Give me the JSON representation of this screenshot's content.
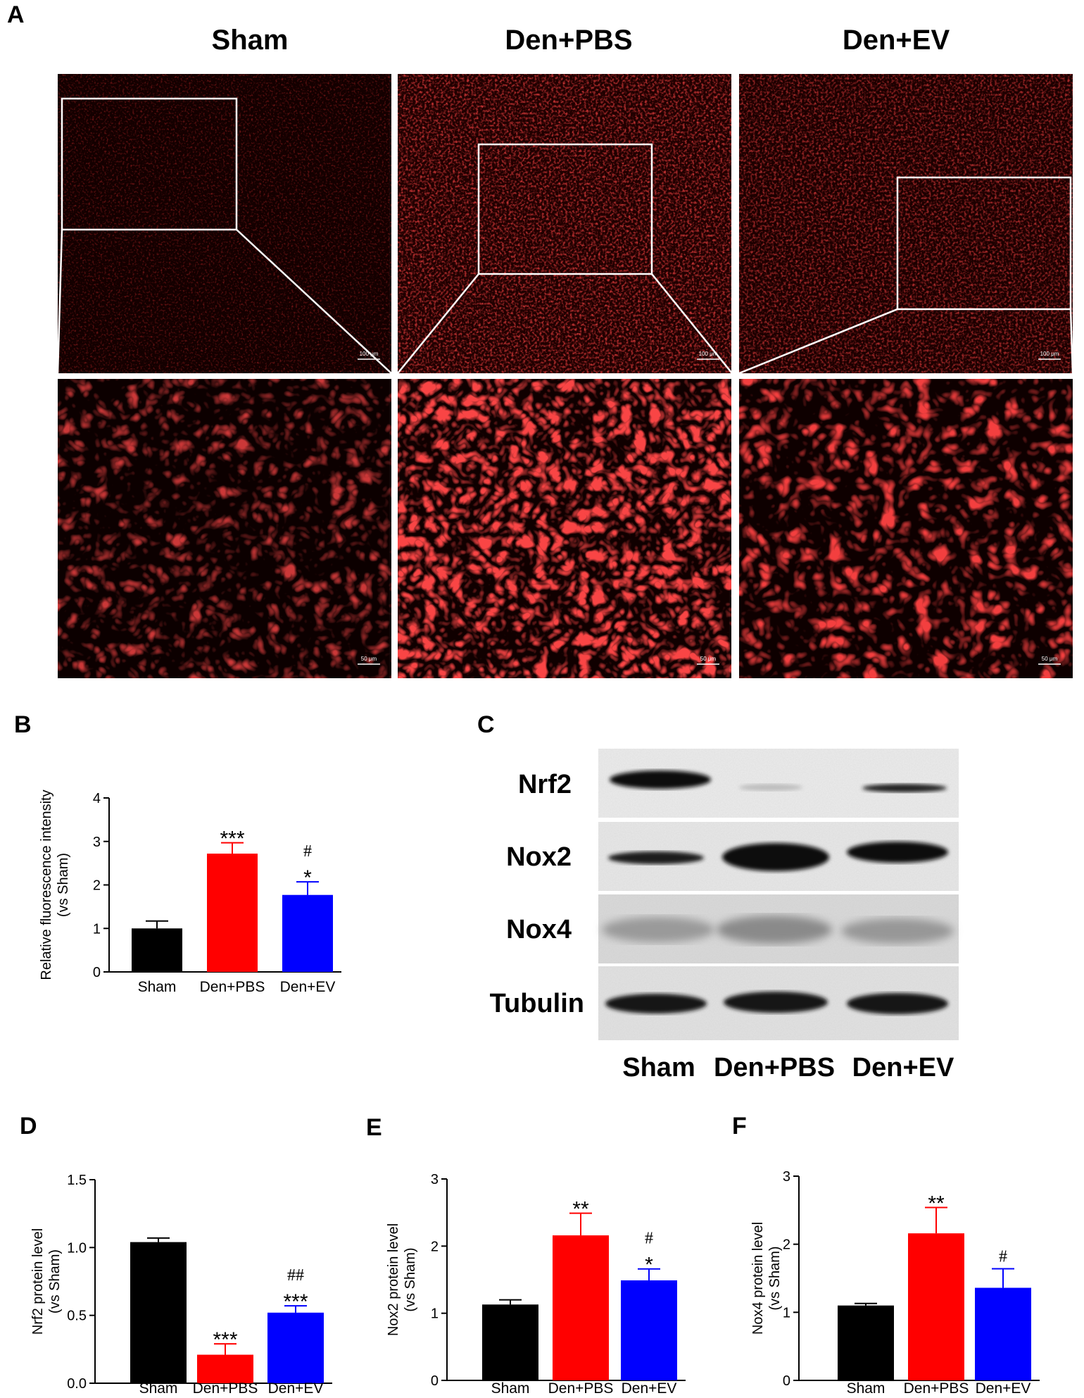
{
  "panel_letters": {
    "A": "A",
    "B": "B",
    "C": "C",
    "D": "D",
    "E": "E",
    "F": "F"
  },
  "panelA": {
    "groups": [
      "Sham",
      "Den+PBS",
      "Den+EV"
    ],
    "scalebar_top": "100 μm",
    "scalebar_bottom": "50 μm",
    "colors": {
      "fluor": "#e01010",
      "background": "#0a0000"
    }
  },
  "panelC": {
    "proteins": [
      "Nrf2",
      "Nox2",
      "Nox4",
      "Tubulin"
    ],
    "lanes": [
      "Sham",
      "Den+PBS",
      "Den+EV"
    ]
  },
  "colors": {
    "Sham": "#000000",
    "Den+PBS": "#ff0000",
    "Den+EV": "#0000ff"
  },
  "chart_data": [
    {
      "id": "B",
      "type": "bar",
      "categories": [
        "Sham",
        "Den+PBS",
        "Den+EV"
      ],
      "values": [
        1.0,
        2.72,
        1.77
      ],
      "errors": [
        0.17,
        0.25,
        0.3
      ],
      "significance": [
        [],
        [
          "***"
        ],
        [
          "#",
          "*"
        ]
      ],
      "ylabel_lines": [
        "Relative fluorescence intensity",
        "(vs Sham)"
      ],
      "ylim": [
        0,
        4
      ],
      "yticks": [
        "0",
        "1",
        "2",
        "3",
        "4"
      ]
    },
    {
      "id": "D",
      "type": "bar",
      "categories": [
        "Sham",
        "Den+PBS",
        "Den+EV"
      ],
      "values": [
        1.04,
        0.21,
        0.52
      ],
      "errors": [
        0.03,
        0.08,
        0.05
      ],
      "significance": [
        [],
        [
          "***"
        ],
        [
          "##",
          "***"
        ]
      ],
      "ylabel_lines": [
        "Nrf2 protein level",
        "(vs Sham)"
      ],
      "ylim": [
        0,
        1.5
      ],
      "yticks": [
        "0.0",
        "0.5",
        "1.0",
        "1.5"
      ]
    },
    {
      "id": "E",
      "type": "bar",
      "categories": [
        "Sham",
        "Den+PBS",
        "Den+EV"
      ],
      "values": [
        1.13,
        2.16,
        1.49
      ],
      "errors": [
        0.07,
        0.33,
        0.17
      ],
      "significance": [
        [],
        [
          "**"
        ],
        [
          "#",
          "*"
        ]
      ],
      "ylabel_lines": [
        "Nox2 protein level",
        "(vs Sham)"
      ],
      "ylim": [
        0,
        3
      ],
      "yticks": [
        "0",
        "1",
        "2",
        "3"
      ]
    },
    {
      "id": "F",
      "type": "bar",
      "categories": [
        "Sham",
        "Den+PBS",
        "Den+EV"
      ],
      "values": [
        1.1,
        2.16,
        1.36
      ],
      "errors": [
        0.03,
        0.38,
        0.28
      ],
      "significance": [
        [],
        [
          "**"
        ],
        [
          "#"
        ]
      ],
      "ylabel_lines": [
        "Nox4 protein level",
        "(vs Sham)"
      ],
      "ylim": [
        0,
        3
      ],
      "yticks": [
        "0",
        "1",
        "2",
        "3"
      ]
    }
  ]
}
